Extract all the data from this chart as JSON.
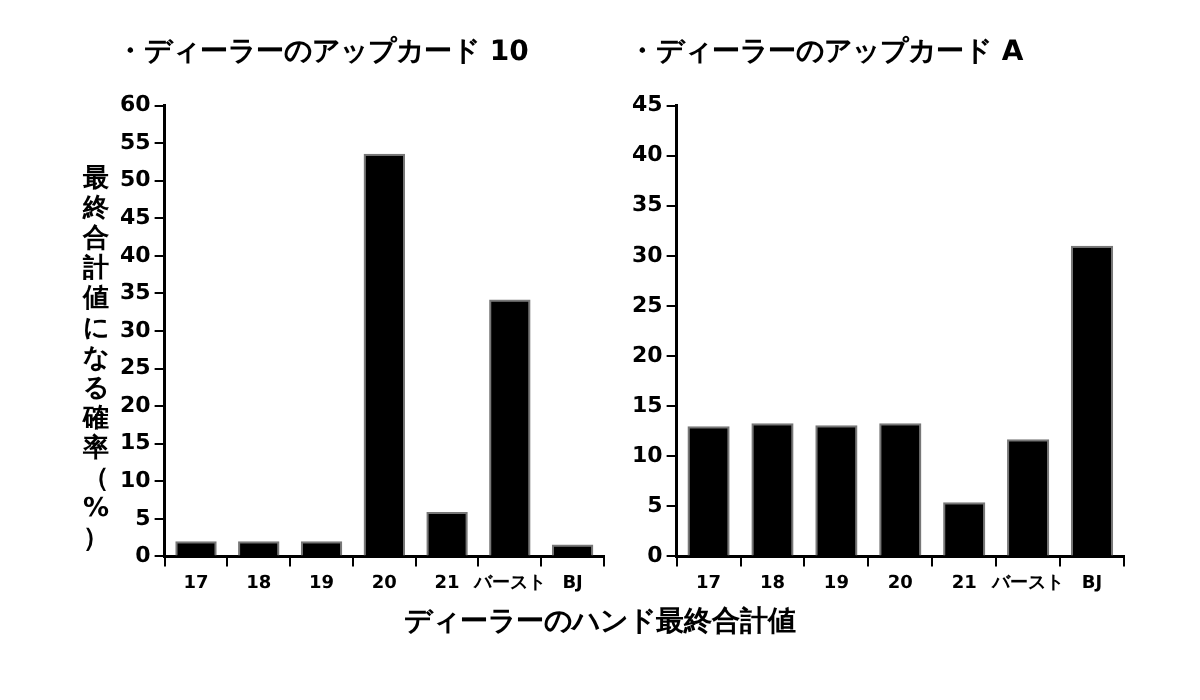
{
  "chart_data": [
    {
      "type": "bar",
      "title": "・ディーラーのアップカード 10",
      "xlabel": "ディーラーのハンド最終合計値",
      "ylabel": "最終合計値になる確率（%）",
      "categories": [
        "17",
        "18",
        "19",
        "20",
        "21",
        "バースト",
        "BJ"
      ],
      "values": [
        2.0,
        2.0,
        2.0,
        53.6,
        5.9,
        34.2,
        1.6
      ],
      "color": "#000000",
      "ylim": [
        0,
        60
      ],
      "yticks": [
        0,
        5,
        10,
        15,
        20,
        25,
        30,
        35,
        40,
        45,
        50,
        55,
        60
      ],
      "grid": false,
      "legend": false
    },
    {
      "type": "bar",
      "title": "・ディーラーのアップカード A",
      "categories": [
        "17",
        "18",
        "19",
        "20",
        "21",
        "バースト",
        "BJ"
      ],
      "values": [
        13.0,
        13.3,
        13.1,
        13.3,
        5.4,
        11.7,
        31.0
      ],
      "color": "#000000",
      "ylim": [
        0,
        45
      ],
      "yticks": [
        0,
        5,
        10,
        15,
        20,
        25,
        30,
        35,
        40,
        45
      ],
      "grid": false,
      "legend": false
    }
  ]
}
